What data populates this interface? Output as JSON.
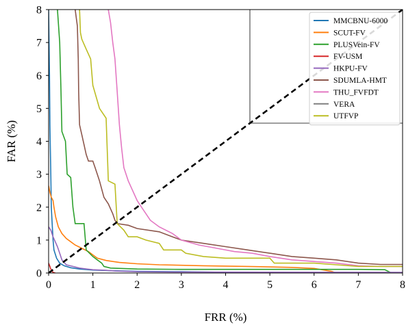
{
  "chart_data": {
    "type": "line",
    "title": "",
    "xlabel": "FRR (%)",
    "ylabel": "FAR (%)",
    "xlim": [
      0,
      8
    ],
    "ylim": [
      0,
      8
    ],
    "x_ticks": [
      "0",
      "1",
      "2",
      "3",
      "4",
      "5",
      "6",
      "7",
      "8"
    ],
    "y_ticks": [
      "0",
      "1",
      "2",
      "3",
      "4",
      "5",
      "6",
      "7",
      "8"
    ],
    "grid": false,
    "legend_position": "top-right",
    "series": [
      {
        "name": "MMCBNU-6000",
        "color": "#1f77b4",
        "points": [
          [
            0.0,
            8.0
          ],
          [
            0.02,
            6.0
          ],
          [
            0.03,
            4.5
          ],
          [
            0.05,
            3.0
          ],
          [
            0.06,
            2.0
          ],
          [
            0.08,
            1.5
          ],
          [
            0.1,
            1.0
          ],
          [
            0.12,
            0.7
          ],
          [
            0.18,
            0.45
          ],
          [
            0.25,
            0.3
          ],
          [
            0.35,
            0.22
          ],
          [
            0.5,
            0.16
          ],
          [
            0.7,
            0.12
          ],
          [
            1.0,
            0.09
          ],
          [
            1.4,
            0.07
          ],
          [
            2.0,
            0.05
          ],
          [
            3.0,
            0.04
          ],
          [
            4.0,
            0.02
          ],
          [
            6.0,
            0.01
          ],
          [
            8.0,
            0.0
          ]
        ]
      },
      {
        "name": "SCUT-FV",
        "color": "#ff7f0e",
        "points": [
          [
            0.0,
            2.65
          ],
          [
            0.03,
            2.45
          ],
          [
            0.06,
            2.3
          ],
          [
            0.1,
            2.2
          ],
          [
            0.12,
            2.0
          ],
          [
            0.16,
            1.7
          ],
          [
            0.22,
            1.4
          ],
          [
            0.3,
            1.2
          ],
          [
            0.4,
            1.05
          ],
          [
            0.5,
            0.95
          ],
          [
            0.6,
            0.85
          ],
          [
            0.75,
            0.75
          ],
          [
            0.9,
            0.65
          ],
          [
            1.0,
            0.55
          ],
          [
            1.1,
            0.45
          ],
          [
            1.3,
            0.38
          ],
          [
            1.6,
            0.32
          ],
          [
            2.0,
            0.28
          ],
          [
            2.5,
            0.25
          ],
          [
            3.5,
            0.22
          ],
          [
            4.5,
            0.2
          ],
          [
            5.5,
            0.17
          ],
          [
            6.0,
            0.14
          ],
          [
            6.4,
            0.05
          ],
          [
            6.5,
            0.0
          ]
        ]
      },
      {
        "name": "PLUSVein-FV",
        "color": "#2ca02c",
        "points": [
          [
            0.2,
            8.0
          ],
          [
            0.25,
            7.0
          ],
          [
            0.28,
            5.5
          ],
          [
            0.3,
            4.3
          ],
          [
            0.38,
            4.0
          ],
          [
            0.42,
            3.0
          ],
          [
            0.5,
            2.9
          ],
          [
            0.55,
            2.0
          ],
          [
            0.6,
            1.5
          ],
          [
            0.8,
            1.5
          ],
          [
            0.85,
            0.7
          ],
          [
            1.0,
            0.5
          ],
          [
            1.1,
            0.4
          ],
          [
            1.2,
            0.3
          ],
          [
            1.25,
            0.2
          ],
          [
            1.4,
            0.15
          ],
          [
            2.0,
            0.12
          ],
          [
            3.0,
            0.11
          ],
          [
            4.0,
            0.11
          ],
          [
            5.0,
            0.11
          ],
          [
            6.0,
            0.11
          ],
          [
            7.0,
            0.11
          ],
          [
            7.6,
            0.1
          ],
          [
            7.75,
            0.0
          ]
        ]
      },
      {
        "name": "FV-USM",
        "color": "#d62728",
        "points": [
          [
            0.0,
            0.3
          ],
          [
            0.03,
            0.2
          ],
          [
            0.05,
            0.12
          ],
          [
            0.08,
            0.05
          ],
          [
            0.1,
            0.02
          ],
          [
            0.15,
            0.0
          ]
        ]
      },
      {
        "name": "HKPU-FV",
        "color": "#9467bd",
        "points": [
          [
            0.0,
            1.4
          ],
          [
            0.05,
            1.3
          ],
          [
            0.1,
            1.1
          ],
          [
            0.15,
            0.95
          ],
          [
            0.2,
            0.8
          ],
          [
            0.25,
            0.6
          ],
          [
            0.3,
            0.4
          ],
          [
            0.4,
            0.25
          ],
          [
            0.55,
            0.2
          ],
          [
            0.7,
            0.15
          ],
          [
            1.0,
            0.1
          ],
          [
            1.3,
            0.08
          ],
          [
            1.5,
            0.06
          ],
          [
            2.0,
            0.04
          ],
          [
            3.0,
            0.03
          ],
          [
            8.0,
            0.02
          ]
        ]
      },
      {
        "name": "SDUMLA-HMT",
        "color": "#8c564b",
        "points": [
          [
            0.6,
            8.0
          ],
          [
            0.65,
            7.5
          ],
          [
            0.67,
            6.5
          ],
          [
            0.68,
            5.5
          ],
          [
            0.7,
            4.5
          ],
          [
            0.75,
            4.2
          ],
          [
            0.8,
            3.9
          ],
          [
            0.85,
            3.6
          ],
          [
            0.9,
            3.4
          ],
          [
            1.0,
            3.4
          ],
          [
            1.05,
            3.2
          ],
          [
            1.1,
            3.0
          ],
          [
            1.15,
            2.8
          ],
          [
            1.25,
            2.3
          ],
          [
            1.35,
            2.1
          ],
          [
            1.45,
            1.8
          ],
          [
            1.5,
            1.6
          ],
          [
            1.55,
            1.5
          ],
          [
            1.8,
            1.45
          ],
          [
            2.0,
            1.35
          ],
          [
            2.5,
            1.25
          ],
          [
            2.8,
            1.1
          ],
          [
            3.0,
            1.0
          ],
          [
            3.5,
            0.9
          ],
          [
            4.0,
            0.8
          ],
          [
            4.5,
            0.7
          ],
          [
            5.0,
            0.6
          ],
          [
            5.5,
            0.5
          ],
          [
            6.0,
            0.45
          ],
          [
            6.5,
            0.4
          ],
          [
            7.0,
            0.3
          ],
          [
            7.5,
            0.26
          ],
          [
            8.0,
            0.26
          ]
        ]
      },
      {
        "name": "THU_FVFDT",
        "color": "#e377c2",
        "points": [
          [
            1.35,
            8.0
          ],
          [
            1.4,
            7.6
          ],
          [
            1.45,
            7.0
          ],
          [
            1.5,
            6.5
          ],
          [
            1.55,
            5.5
          ],
          [
            1.6,
            4.5
          ],
          [
            1.65,
            3.8
          ],
          [
            1.7,
            3.2
          ],
          [
            1.8,
            2.8
          ],
          [
            1.9,
            2.5
          ],
          [
            2.0,
            2.2
          ],
          [
            2.1,
            2.0
          ],
          [
            2.2,
            1.8
          ],
          [
            2.3,
            1.6
          ],
          [
            2.5,
            1.4
          ],
          [
            2.8,
            1.2
          ],
          [
            3.0,
            1.0
          ],
          [
            3.4,
            0.85
          ],
          [
            3.8,
            0.75
          ],
          [
            4.2,
            0.65
          ],
          [
            4.6,
            0.6
          ],
          [
            5.0,
            0.5
          ],
          [
            5.5,
            0.4
          ],
          [
            6.0,
            0.35
          ],
          [
            6.5,
            0.3
          ],
          [
            7.0,
            0.22
          ],
          [
            7.5,
            0.2
          ],
          [
            8.0,
            0.2
          ]
        ]
      },
      {
        "name": "VERA",
        "color": "#7f7f7f",
        "points": [
          [
            4.55,
            8.0
          ],
          [
            4.55,
            4.55
          ],
          [
            8.0,
            4.55
          ]
        ]
      },
      {
        "name": "UTFVP",
        "color": "#bcbd22",
        "points": [
          [
            0.7,
            8.0
          ],
          [
            0.72,
            7.3
          ],
          [
            0.75,
            7.1
          ],
          [
            0.85,
            6.8
          ],
          [
            0.95,
            6.5
          ],
          [
            1.0,
            5.7
          ],
          [
            1.15,
            5.0
          ],
          [
            1.3,
            4.7
          ],
          [
            1.35,
            2.8
          ],
          [
            1.5,
            2.7
          ],
          [
            1.55,
            1.5
          ],
          [
            1.7,
            1.3
          ],
          [
            1.8,
            1.1
          ],
          [
            2.0,
            1.1
          ],
          [
            2.2,
            1.0
          ],
          [
            2.5,
            0.9
          ],
          [
            2.6,
            0.7
          ],
          [
            3.0,
            0.7
          ],
          [
            3.1,
            0.6
          ],
          [
            3.5,
            0.5
          ],
          [
            4.0,
            0.45
          ],
          [
            4.5,
            0.45
          ],
          [
            5.0,
            0.45
          ],
          [
            5.1,
            0.3
          ],
          [
            6.0,
            0.3
          ],
          [
            6.5,
            0.25
          ],
          [
            7.0,
            0.2
          ],
          [
            7.5,
            0.2
          ],
          [
            8.0,
            0.2
          ]
        ]
      }
    ],
    "reference_line": {
      "points": [
        [
          0,
          0
        ],
        [
          8,
          8
        ]
      ],
      "color": "#000000",
      "style": "dashed"
    }
  }
}
